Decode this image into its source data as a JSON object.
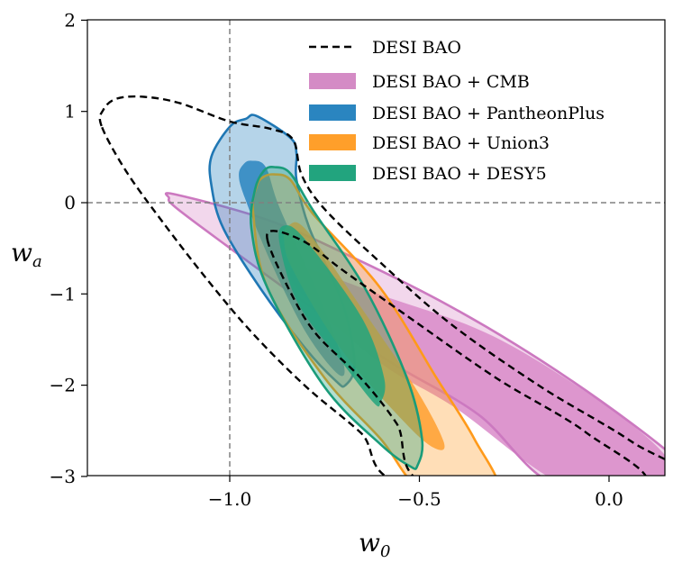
{
  "chart_data": {
    "type": "contour",
    "xlabel": "w",
    "xlabel_sub": "0",
    "ylabel": "w",
    "ylabel_sub": "a",
    "xlim": [
      -1.374,
      0.145
    ],
    "ylim": [
      -3,
      2
    ],
    "xticks": [
      -1.0,
      -0.5,
      0.0
    ],
    "xtick_labels": [
      "−1.0",
      "−0.5",
      "0.0"
    ],
    "yticks": [
      2,
      1,
      0,
      -1,
      -2,
      -3
    ],
    "ytick_labels": [
      "2",
      "1",
      "0",
      "−1",
      "−2",
      "−3"
    ],
    "grid": false,
    "reference_lines": {
      "w0": -1,
      "wa": 0,
      "style": "dashed",
      "color": "#808080"
    },
    "legend_position": "top-right",
    "series": [
      {
        "name": "DESI BAO + CMB",
        "style": "filled",
        "color": "#cc79c0",
        "fill": "#d98bc9",
        "contours": {
          "outer": [
            [
              -1.16,
              0.05
            ],
            [
              -1.143,
              0.09
            ],
            [
              -0.893,
              -0.2
            ],
            [
              -0.655,
              -0.64
            ],
            [
              -0.417,
              -1.14
            ],
            [
              -0.179,
              -1.73
            ],
            [
              0.06,
              -2.42
            ],
            [
              0.202,
              -2.91
            ],
            [
              0.202,
              -3.11
            ],
            [
              -0.131,
              -3.11
            ],
            [
              -0.345,
              -2.32
            ],
            [
              -0.583,
              -1.73
            ],
            [
              -0.821,
              -1.04
            ],
            [
              -1.012,
              -0.46
            ],
            [
              -1.143,
              -0.05
            ]
          ],
          "inner": [
            [
              -0.84,
              -0.79
            ],
            [
              -0.8,
              -0.72
            ],
            [
              -0.602,
              -1.01
            ],
            [
              -0.307,
              -1.46
            ],
            [
              -0.01,
              -2.22
            ],
            [
              0.155,
              -2.81
            ],
            [
              0.131,
              -3.11
            ],
            [
              -0.11,
              -3.11
            ],
            [
              -0.405,
              -2.25
            ],
            [
              -0.602,
              -1.76
            ],
            [
              -0.8,
              -1.04
            ]
          ]
        }
      },
      {
        "name": "DESI BAO + PantheonPlus",
        "style": "filled",
        "color": "#1f77b4",
        "fill": "#2a85c0",
        "contours": {
          "outer": [
            [
              -0.929,
              0.95
            ],
            [
              -0.84,
              0.71
            ],
            [
              -0.824,
              0.54
            ],
            [
              -0.824,
              0.25
            ],
            [
              -0.79,
              -0.28
            ],
            [
              -0.702,
              -1.11
            ],
            [
              -0.671,
              -1.76
            ],
            [
              -0.695,
              -2.0
            ],
            [
              -0.721,
              -1.95
            ],
            [
              -0.8,
              -1.6
            ],
            [
              -0.919,
              -0.94
            ],
            [
              -1.017,
              -0.28
            ],
            [
              -1.048,
              0.18
            ],
            [
              -1.048,
              0.51
            ],
            [
              -0.998,
              0.84
            ],
            [
              -0.957,
              0.92
            ]
          ],
          "inner": [
            [
              -0.943,
              0.46
            ],
            [
              -0.905,
              0.39
            ],
            [
              -0.869,
              -0.05
            ],
            [
              -0.774,
              -0.94
            ],
            [
              -0.702,
              -1.73
            ],
            [
              -0.714,
              -1.88
            ],
            [
              -0.798,
              -1.43
            ],
            [
              -0.893,
              -0.64
            ],
            [
              -0.96,
              0.05
            ],
            [
              -0.976,
              0.3
            ],
            [
              -0.964,
              0.42
            ]
          ]
        }
      },
      {
        "name": "DESI BAO + Union3",
        "style": "filled",
        "color": "#ff9a1a",
        "fill": "#ffa030",
        "contours": {
          "outer": [
            [
              -0.883,
              0.31
            ],
            [
              -0.84,
              0.25
            ],
            [
              -0.781,
              -0.12
            ],
            [
              -0.602,
              -0.94
            ],
            [
              -0.455,
              -1.92
            ],
            [
              -0.355,
              -2.59
            ],
            [
              -0.298,
              -3.16
            ],
            [
              -0.488,
              -3.16
            ],
            [
              -0.602,
              -2.59
            ],
            [
              -0.75,
              -1.92
            ],
            [
              -0.9,
              -0.94
            ],
            [
              -0.938,
              -0.12
            ],
            [
              -0.929,
              0.18
            ],
            [
              -0.912,
              0.28
            ]
          ],
          "inner": [
            [
              -0.845,
              -0.25
            ],
            [
              -0.798,
              -0.3
            ],
            [
              -0.655,
              -1.14
            ],
            [
              -0.512,
              -2.02
            ],
            [
              -0.436,
              -2.62
            ],
            [
              -0.46,
              -2.69
            ],
            [
              -0.536,
              -2.42
            ],
            [
              -0.702,
              -1.63
            ],
            [
              -0.833,
              -0.74
            ],
            [
              -0.857,
              -0.39
            ]
          ]
        }
      },
      {
        "name": "DESI BAO + DESY5",
        "style": "filled",
        "color": "#1a9c7a",
        "fill": "#22a47e",
        "contours": {
          "outer": [
            [
              -0.883,
              0.39
            ],
            [
              -0.84,
              0.32
            ],
            [
              -0.781,
              -0.08
            ],
            [
              -0.643,
              -0.94
            ],
            [
              -0.533,
              -1.92
            ],
            [
              -0.493,
              -2.59
            ],
            [
              -0.505,
              -2.88
            ],
            [
              -0.524,
              -2.89
            ],
            [
              -0.602,
              -2.65
            ],
            [
              -0.75,
              -2.02
            ],
            [
              -0.9,
              -0.94
            ],
            [
              -0.943,
              -0.28
            ],
            [
              -0.933,
              0.15
            ],
            [
              -0.91,
              0.35
            ]
          ],
          "inner": [
            [
              -0.855,
              -0.25
            ],
            [
              -0.8,
              -0.41
            ],
            [
              -0.652,
              -1.26
            ],
            [
              -0.593,
              -1.92
            ],
            [
              -0.602,
              -2.19
            ],
            [
              -0.621,
              -2.19
            ],
            [
              -0.702,
              -1.76
            ],
            [
              -0.819,
              -1.11
            ],
            [
              -0.869,
              -0.44
            ]
          ]
        }
      },
      {
        "name": "DESI BAO",
        "style": "dashed",
        "color": "#000000",
        "contours": {
          "outer": [
            [
              -1.338,
              0.84
            ],
            [
              -1.333,
              1.02
            ],
            [
              -1.298,
              1.14
            ],
            [
              -1.226,
              1.16
            ],
            [
              -1.131,
              1.09
            ],
            [
              -1.0,
              0.89
            ],
            [
              -0.893,
              0.81
            ],
            [
              -0.833,
              0.69
            ],
            [
              -0.81,
              0.3
            ],
            [
              -0.75,
              -0.07
            ],
            [
              -0.607,
              -0.64
            ],
            [
              -0.417,
              -1.33
            ],
            [
              -0.179,
              -2.02
            ],
            [
              0.06,
              -2.62
            ],
            [
              0.202,
              -3.11
            ],
            [
              -0.512,
              -3.11
            ],
            [
              -0.655,
              -2.52
            ],
            [
              -0.798,
              -2.02
            ],
            [
              -0.94,
              -1.43
            ],
            [
              -1.06,
              -0.84
            ],
            [
              -1.179,
              -0.2
            ],
            [
              -1.274,
              0.35
            ]
          ],
          "inner": [
            [
              -0.9,
              -0.42
            ],
            [
              -0.881,
              -0.31
            ],
            [
              -0.798,
              -0.44
            ],
            [
              -0.702,
              -0.74
            ],
            [
              -0.536,
              -1.23
            ],
            [
              -0.298,
              -1.92
            ],
            [
              -0.06,
              -2.52
            ],
            [
              0.083,
              -3.11
            ],
            [
              -0.464,
              -3.11
            ],
            [
              -0.56,
              -2.42
            ],
            [
              -0.655,
              -1.92
            ],
            [
              -0.774,
              -1.43
            ],
            [
              -0.845,
              -0.94
            ]
          ]
        }
      }
    ],
    "legend": [
      {
        "label": "DESI BAO",
        "style": "dashed",
        "color": "#000000"
      },
      {
        "label": "DESI BAO + CMB",
        "style": "filled",
        "color": "#d48bc5"
      },
      {
        "label": "DESI BAO + PantheonPlus",
        "style": "filled",
        "color": "#2a85c0"
      },
      {
        "label": "DESI BAO + Union3",
        "style": "filled",
        "color": "#ff9f2a"
      },
      {
        "label": "DESI BAO + DESY5",
        "style": "filled",
        "color": "#22a47e"
      }
    ]
  }
}
